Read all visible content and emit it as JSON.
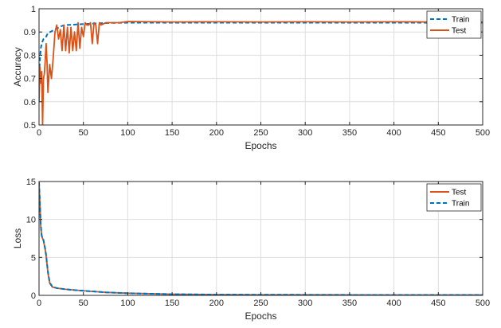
{
  "colors": {
    "train": "#0072bd",
    "test": "#d95319",
    "grid": "#dedede",
    "axis": "#262626"
  },
  "chart_data": [
    {
      "type": "line",
      "xlabel": "Epochs",
      "ylabel": "Accuracy",
      "xlim": [
        0,
        500
      ],
      "ylim": [
        0.5,
        1
      ],
      "xticks": [
        "0",
        "50",
        "100",
        "150",
        "200",
        "250",
        "300",
        "350",
        "400",
        "450",
        "500"
      ],
      "yticks": [
        "0.5",
        "0.6",
        "0.7",
        "0.8",
        "0.9",
        "1"
      ],
      "grid": true,
      "legend_position": "top-right",
      "legend": [
        "Train",
        "Test"
      ],
      "series": [
        {
          "name": "Train",
          "style": "dashed",
          "x": [
            0,
            1,
            2,
            3,
            5,
            8,
            10,
            15,
            20,
            25,
            30,
            40,
            50,
            60,
            70,
            80,
            100,
            150,
            200,
            250,
            300,
            350,
            400,
            450,
            500
          ],
          "y": [
            0.72,
            0.78,
            0.83,
            0.85,
            0.87,
            0.88,
            0.895,
            0.905,
            0.915,
            0.925,
            0.93,
            0.932,
            0.934,
            0.936,
            0.938,
            0.939,
            0.94,
            0.94,
            0.94,
            0.94,
            0.94,
            0.94,
            0.94,
            0.94,
            0.94
          ]
        },
        {
          "name": "Test",
          "style": "solid",
          "x": [
            0,
            1,
            2,
            3,
            4,
            5,
            6,
            7,
            8,
            9,
            10,
            12,
            14,
            16,
            18,
            20,
            22,
            24,
            26,
            28,
            30,
            32,
            34,
            36,
            38,
            40,
            42,
            44,
            46,
            48,
            50,
            52,
            54,
            56,
            58,
            60,
            62,
            64,
            66,
            68,
            70,
            75,
            80,
            90,
            100,
            150,
            200,
            250,
            300,
            350,
            400,
            450,
            500
          ],
          "y": [
            0.6,
            0.75,
            0.68,
            0.73,
            0.5,
            0.7,
            0.72,
            0.78,
            0.85,
            0.77,
            0.64,
            0.76,
            0.7,
            0.79,
            0.9,
            0.93,
            0.87,
            0.91,
            0.82,
            0.93,
            0.82,
            0.92,
            0.81,
            0.92,
            0.82,
            0.9,
            0.82,
            0.94,
            0.83,
            0.92,
            0.88,
            0.94,
            0.93,
            0.93,
            0.94,
            0.85,
            0.94,
            0.93,
            0.85,
            0.94,
            0.93,
            0.94,
            0.94,
            0.94,
            0.945,
            0.943,
            0.944,
            0.943,
            0.944,
            0.943,
            0.944,
            0.943,
            0.943
          ]
        }
      ]
    },
    {
      "type": "line",
      "xlabel": "Epochs",
      "ylabel": "Loss",
      "xlim": [
        0,
        500
      ],
      "ylim": [
        0,
        15
      ],
      "xticks": [
        "0",
        "50",
        "100",
        "150",
        "200",
        "250",
        "300",
        "350",
        "400",
        "450",
        "500"
      ],
      "yticks": [
        "0",
        "5",
        "10",
        "15"
      ],
      "grid": true,
      "legend_position": "top-right",
      "legend": [
        "Test",
        "Train"
      ],
      "series": [
        {
          "name": "Test",
          "style": "solid",
          "x": [
            0,
            1,
            2,
            3,
            5,
            7,
            8,
            10,
            12,
            15,
            20,
            30,
            50,
            75,
            100,
            150,
            200,
            250,
            300,
            350,
            400,
            450,
            500
          ],
          "y": [
            14.8,
            12,
            9,
            7.8,
            7.2,
            6,
            5.2,
            3,
            1.6,
            1.1,
            0.95,
            0.8,
            0.6,
            0.4,
            0.28,
            0.15,
            0.1,
            0.08,
            0.07,
            0.06,
            0.05,
            0.05,
            0.05
          ]
        },
        {
          "name": "Train",
          "style": "dashed",
          "x": [
            0,
            1,
            2,
            3,
            5,
            7,
            8,
            10,
            12,
            15,
            20,
            30,
            50,
            75,
            100,
            150,
            200,
            250,
            300,
            350,
            400,
            450,
            500
          ],
          "y": [
            14.9,
            12.2,
            9.2,
            7.9,
            7.3,
            6.1,
            5.3,
            3.1,
            1.7,
            1.15,
            0.95,
            0.8,
            0.6,
            0.4,
            0.28,
            0.15,
            0.1,
            0.08,
            0.07,
            0.06,
            0.05,
            0.05,
            0.05
          ]
        }
      ]
    }
  ]
}
